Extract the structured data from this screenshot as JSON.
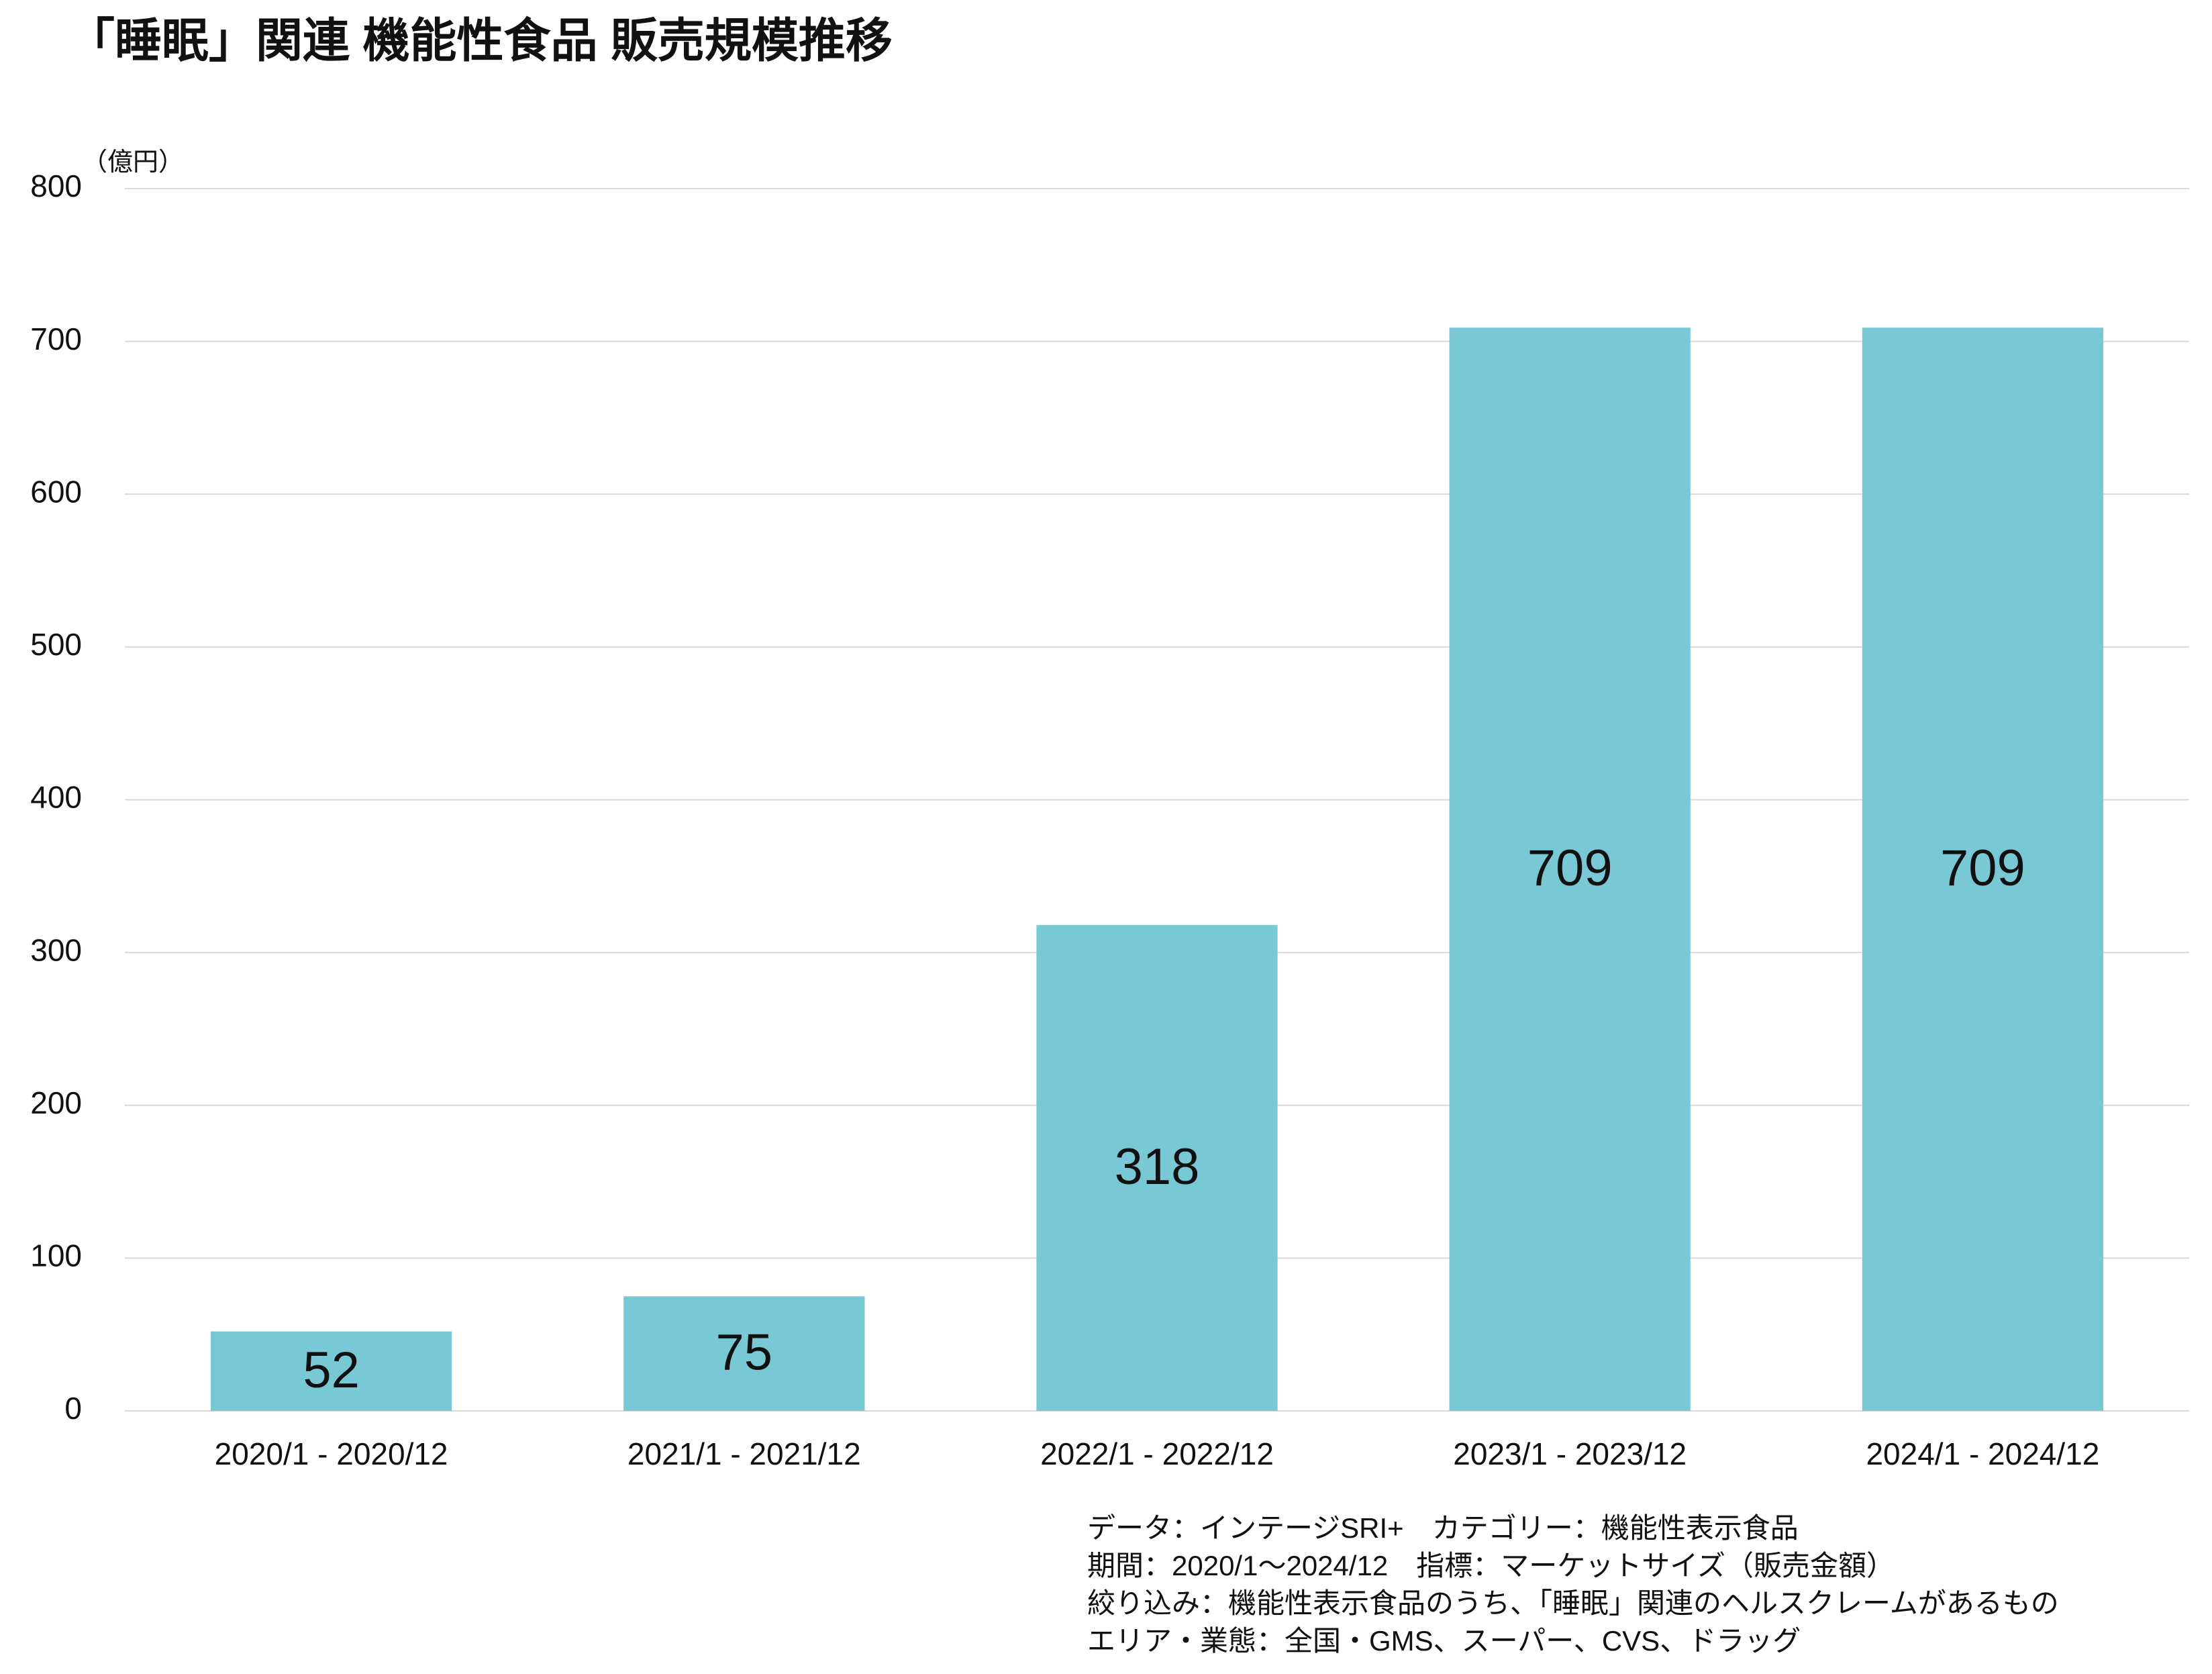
{
  "chart_data": {
    "type": "bar",
    "title": "「睡眠」関連 機能性食品 販売規模推移",
    "y_unit": "（億円）",
    "categories": [
      "2020/1 - 2020/12",
      "2021/1 - 2021/12",
      "2022/1 - 2022/12",
      "2023/1 - 2023/12",
      "2024/1 - 2024/12"
    ],
    "values": [
      52,
      75,
      318,
      709,
      709
    ],
    "color": "#78c8d6",
    "ylim": [
      0,
      800
    ],
    "yticks": [
      0,
      100,
      200,
      300,
      400,
      500,
      600,
      700,
      800
    ],
    "grid": true,
    "notes": [
      "データ：インテージSRI+　カテゴリー：機能性表示食品",
      "期間：2020/1～2024/12　指標：マーケットサイズ（販売金額）",
      "絞り込み：機能性表示食品のうち、「睡眠」関連のヘルスクレームがあるもの",
      "エリア・業態：全国・GMS、スーパー、CVS、ドラッグ"
    ]
  }
}
